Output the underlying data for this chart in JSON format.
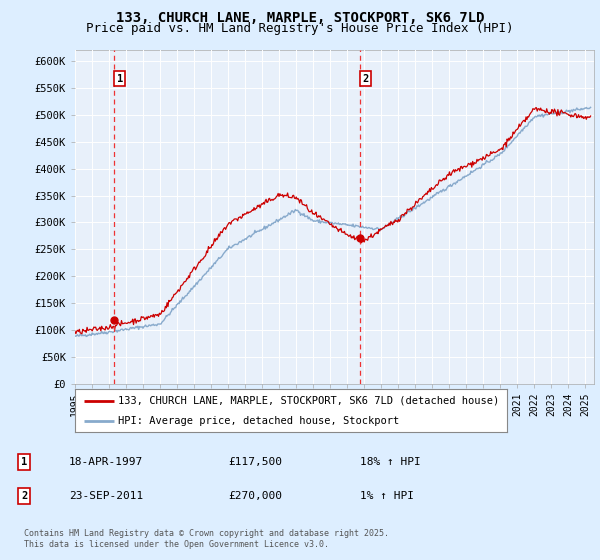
{
  "title": "133, CHURCH LANE, MARPLE, STOCKPORT, SK6 7LD",
  "subtitle": "Price paid vs. HM Land Registry's House Price Index (HPI)",
  "ylim": [
    0,
    620000
  ],
  "yticks": [
    0,
    50000,
    100000,
    150000,
    200000,
    250000,
    300000,
    350000,
    400000,
    450000,
    500000,
    550000,
    600000
  ],
  "ytick_labels": [
    "£0",
    "£50K",
    "£100K",
    "£150K",
    "£200K",
    "£250K",
    "£300K",
    "£350K",
    "£400K",
    "£450K",
    "£500K",
    "£550K",
    "£600K"
  ],
  "xlim_start": 1995.0,
  "xlim_end": 2025.5,
  "transaction1_x": 1997.29,
  "transaction1_y": 117500,
  "transaction1_label": "1",
  "transaction1_date": "18-APR-1997",
  "transaction1_price": "£117,500",
  "transaction1_hpi": "18% ↑ HPI",
  "transaction2_x": 2011.73,
  "transaction2_y": 270000,
  "transaction2_label": "2",
  "transaction2_date": "23-SEP-2011",
  "transaction2_price": "£270,000",
  "transaction2_hpi": "1% ↑ HPI",
  "line_color_property": "#cc0000",
  "line_color_hpi": "#88aacc",
  "bg_color": "#ddeeff",
  "plot_bg_color": "#ddeeff",
  "plot_inner_bg": "#e8f0fa",
  "legend_label_property": "133, CHURCH LANE, MARPLE, STOCKPORT, SK6 7LD (detached house)",
  "legend_label_hpi": "HPI: Average price, detached house, Stockport",
  "footer": "Contains HM Land Registry data © Crown copyright and database right 2025.\nThis data is licensed under the Open Government Licence v3.0.",
  "title_fontsize": 10,
  "subtitle_fontsize": 9
}
